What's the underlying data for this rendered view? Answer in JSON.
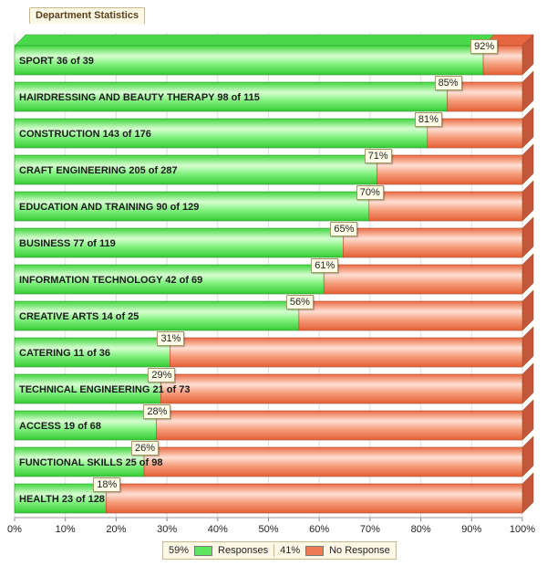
{
  "title": "Department Statistics",
  "chart_data": {
    "type": "bar",
    "orientation": "horizontal",
    "stacked": true,
    "categories": [
      "SPORT 36 of 39",
      "HAIRDRESSING AND BEAUTY THERAPY 98 of 115",
      "CONSTRUCTION 143 of 176",
      "CRAFT ENGINEERING 205 of 287",
      "EDUCATION AND TRAINING 90 of 129",
      "BUSINESS 77 of 119",
      "INFORMATION TECHNOLOGY 42 of 69",
      "CREATIVE ARTS 14 of 25",
      "CATERING 11 of 36",
      "TECHNICAL ENGINEERING 21 of 73",
      "ACCESS 19 of 68",
      "FUNCTIONAL SKILLS 25 of 98",
      "HEALTH 23 of 128"
    ],
    "series": [
      {
        "name": "Responses",
        "values": [
          92.3,
          85.2,
          81.3,
          71.4,
          69.8,
          64.7,
          60.9,
          56.0,
          30.6,
          28.8,
          27.9,
          25.5,
          18.0
        ],
        "color": "#5fe55f"
      },
      {
        "name": "No Response",
        "values": [
          7.7,
          14.8,
          18.7,
          28.6,
          30.2,
          35.3,
          39.1,
          44.0,
          69.4,
          71.2,
          72.1,
          74.5,
          82.0
        ],
        "color": "#f07a54"
      }
    ],
    "data_labels": [
      "92%",
      "85%",
      "81%",
      "71%",
      "70%",
      "65%",
      "61%",
      "56%",
      "31%",
      "29%",
      "28%",
      "26%",
      "18%"
    ],
    "xlim": [
      0,
      100
    ],
    "x_ticks": [
      "0%",
      "10%",
      "20%",
      "30%",
      "40%",
      "50%",
      "60%",
      "70%",
      "80%",
      "90%",
      "100%"
    ],
    "legend": {
      "position": "bottom",
      "items": [
        {
          "pct": "59%",
          "label": "Responses",
          "color": "#5fe55f"
        },
        {
          "pct": "41%",
          "label": "No Response",
          "color": "#f07a54"
        }
      ]
    },
    "grid": true
  }
}
